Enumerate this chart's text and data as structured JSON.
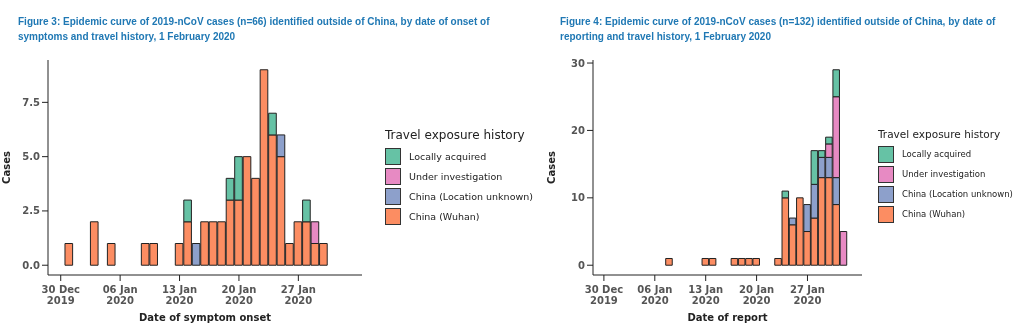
{
  "chart_data": [
    {
      "type": "bar",
      "stacked": true,
      "title": "Figure 3: Epidemic curve of 2019-nCoV cases (n=66) identified outside of China, by date of onset of symptoms and travel history, 1 February 2020",
      "xlabel": "Date of symptom onset",
      "ylabel": "Cases",
      "legend_title": "Travel exposure history",
      "legend": "right",
      "x": [
        "2019-12-31",
        "2020-01-01",
        "2020-01-02",
        "2020-01-03",
        "2020-01-04",
        "2020-01-05",
        "2020-01-06",
        "2020-01-07",
        "2020-01-08",
        "2020-01-09",
        "2020-01-10",
        "2020-01-11",
        "2020-01-12",
        "2020-01-13",
        "2020-01-14",
        "2020-01-15",
        "2020-01-16",
        "2020-01-17",
        "2020-01-18",
        "2020-01-19",
        "2020-01-20",
        "2020-01-21",
        "2020-01-22",
        "2020-01-23",
        "2020-01-24",
        "2020-01-25",
        "2020-01-26",
        "2020-01-27",
        "2020-01-28",
        "2020-01-29",
        "2020-01-30",
        "2020-01-31",
        "2020-02-01"
      ],
      "series": [
        {
          "name": "China (Wuhan)",
          "color": "#fc8d62",
          "values": [
            1,
            0,
            0,
            2,
            0,
            1,
            0,
            0,
            0,
            1,
            1,
            0,
            0,
            1,
            2,
            0,
            2,
            2,
            2,
            3,
            3,
            5,
            4,
            9,
            6,
            5,
            1,
            2,
            2,
            1,
            1,
            0,
            0
          ]
        },
        {
          "name": "China (Location unknown)",
          "color": "#8da0cb",
          "values": [
            0,
            0,
            0,
            0,
            0,
            0,
            0,
            0,
            0,
            0,
            0,
            0,
            0,
            0,
            0,
            1,
            0,
            0,
            0,
            0,
            0,
            0,
            0,
            0,
            0,
            1,
            0,
            0,
            0,
            0,
            0,
            0,
            0
          ]
        },
        {
          "name": "Under investigation",
          "color": "#e78ac3",
          "values": [
            0,
            0,
            0,
            0,
            0,
            0,
            0,
            0,
            0,
            0,
            0,
            0,
            0,
            0,
            0,
            0,
            0,
            0,
            0,
            0,
            0,
            0,
            0,
            0,
            0,
            0,
            0,
            0,
            0,
            1,
            0,
            0,
            0
          ]
        },
        {
          "name": "Locally acquired",
          "color": "#66c2a5",
          "values": [
            0,
            0,
            0,
            0,
            0,
            0,
            0,
            0,
            0,
            0,
            0,
            0,
            0,
            0,
            1,
            0,
            0,
            0,
            0,
            1,
            2,
            0,
            0,
            0,
            1,
            0,
            0,
            0,
            1,
            0,
            0,
            0,
            0
          ]
        }
      ],
      "xlim": [
        "2019-12-28T12:00",
        "2020-02-03T12:00"
      ],
      "xticks": [
        {
          "value": "2019-12-30",
          "label": "30 Dec 2019"
        },
        {
          "value": "2020-01-06",
          "label": "06 Jan 2020"
        },
        {
          "value": "2020-01-13",
          "label": "13 Jan 2020"
        },
        {
          "value": "2020-01-20",
          "label": "20 Jan 2020"
        },
        {
          "value": "2020-01-27",
          "label": "27 Jan 2020"
        }
      ],
      "ylim": [
        -0.45,
        9.45
      ],
      "yticks": [
        {
          "value": 0,
          "label": "0.0"
        },
        {
          "value": 2.5,
          "label": "2.5"
        },
        {
          "value": 5,
          "label": "5.0"
        },
        {
          "value": 7.5,
          "label": "7.5"
        }
      ]
    },
    {
      "type": "bar",
      "stacked": true,
      "title": "Figure 4: Epidemic curve of 2019-nCoV cases (n=132) identified outside of China, by date of reporting and travel history, 1 February 2020",
      "xlabel": "Date of report",
      "ylabel": "Cases",
      "legend_title": "Travel exposure history",
      "legend": "right",
      "x": [
        "2019-12-31",
        "2020-01-01",
        "2020-01-02",
        "2020-01-03",
        "2020-01-04",
        "2020-01-05",
        "2020-01-06",
        "2020-01-07",
        "2020-01-08",
        "2020-01-09",
        "2020-01-10",
        "2020-01-11",
        "2020-01-12",
        "2020-01-13",
        "2020-01-14",
        "2020-01-15",
        "2020-01-16",
        "2020-01-17",
        "2020-01-18",
        "2020-01-19",
        "2020-01-20",
        "2020-01-21",
        "2020-01-22",
        "2020-01-23",
        "2020-01-24",
        "2020-01-25",
        "2020-01-26",
        "2020-01-27",
        "2020-01-28",
        "2020-01-29",
        "2020-01-30",
        "2020-01-31",
        "2020-02-01"
      ],
      "series": [
        {
          "name": "China (Wuhan)",
          "color": "#fc8d62",
          "values": [
            0,
            0,
            0,
            0,
            0,
            0,
            0,
            0,
            1,
            0,
            0,
            0,
            0,
            1,
            1,
            0,
            0,
            1,
            1,
            1,
            1,
            0,
            0,
            1,
            10,
            6,
            10,
            5,
            7,
            13,
            13,
            9,
            0
          ]
        },
        {
          "name": "China (Location unknown)",
          "color": "#8da0cb",
          "values": [
            0,
            0,
            0,
            0,
            0,
            0,
            0,
            0,
            0,
            0,
            0,
            0,
            0,
            0,
            0,
            0,
            0,
            0,
            0,
            0,
            0,
            0,
            0,
            0,
            0,
            1,
            0,
            4,
            5,
            3,
            3,
            4,
            0
          ]
        },
        {
          "name": "Under investigation",
          "color": "#e78ac3",
          "values": [
            0,
            0,
            0,
            0,
            0,
            0,
            0,
            0,
            0,
            0,
            0,
            0,
            0,
            0,
            0,
            0,
            0,
            0,
            0,
            0,
            0,
            0,
            0,
            0,
            0,
            0,
            0,
            0,
            0,
            0,
            2,
            12,
            5
          ]
        },
        {
          "name": "Locally acquired",
          "color": "#66c2a5",
          "values": [
            0,
            0,
            0,
            0,
            0,
            0,
            0,
            0,
            0,
            0,
            0,
            0,
            0,
            0,
            0,
            0,
            0,
            0,
            0,
            0,
            0,
            0,
            0,
            0,
            1,
            0,
            0,
            0,
            5,
            1,
            1,
            4,
            0
          ]
        }
      ],
      "xlim": [
        "2019-12-28T12:00",
        "2020-02-03T12:00"
      ],
      "xticks": [
        {
          "value": "2019-12-30",
          "label": "30 Dec 2019"
        },
        {
          "value": "2020-01-06",
          "label": "06 Jan 2020"
        },
        {
          "value": "2020-01-13",
          "label": "13 Jan 2020"
        },
        {
          "value": "2020-01-20",
          "label": "20 Jan 2020"
        },
        {
          "value": "2020-01-27",
          "label": "27 Jan 2020"
        }
      ],
      "ylim": [
        -1.45,
        30.45
      ],
      "yticks": [
        0,
        10,
        20,
        30
      ]
    }
  ]
}
